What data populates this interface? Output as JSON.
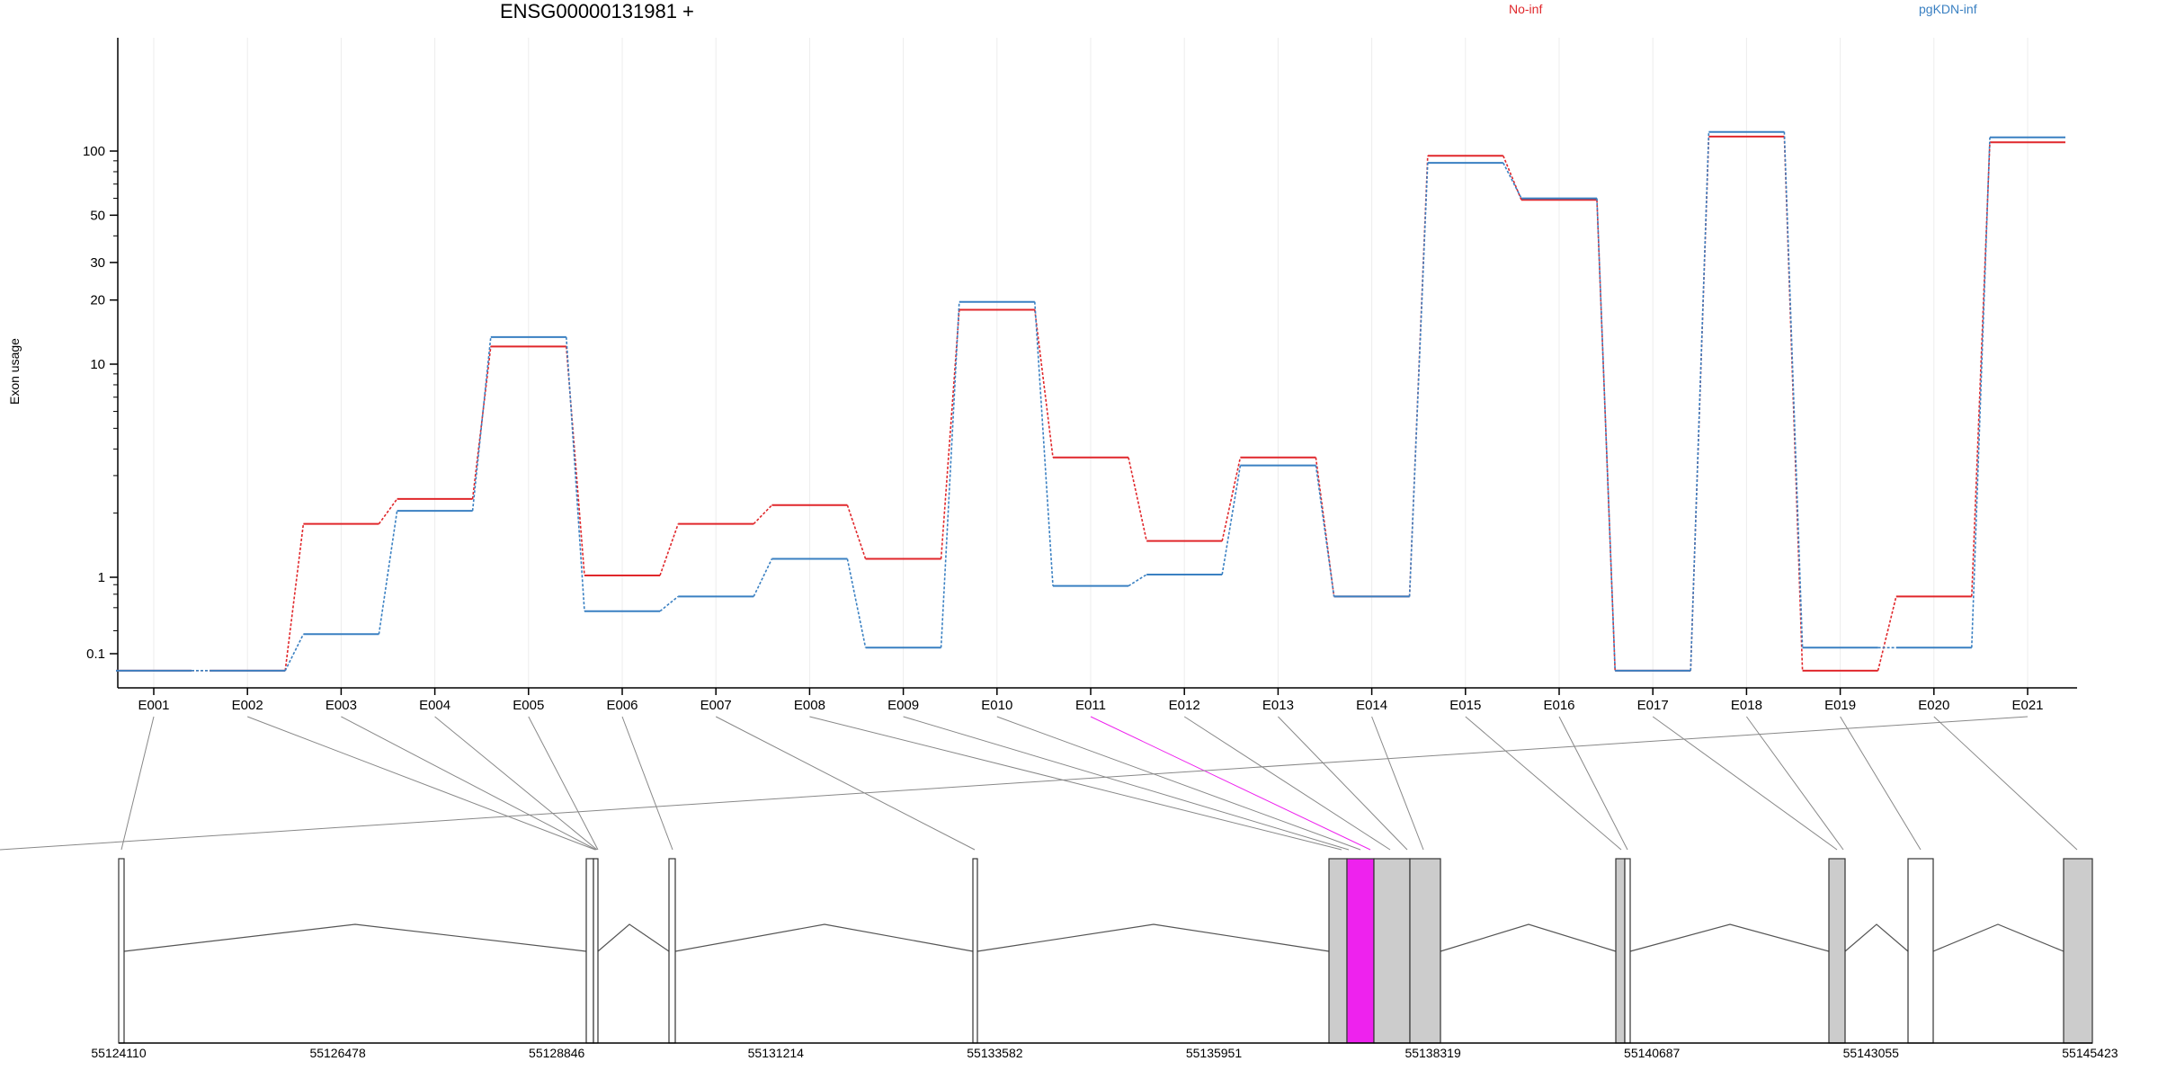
{
  "chart_data": {
    "type": "line",
    "title": "ENSG00000131981 +",
    "ylabel": "Exon usage",
    "yscale": "log",
    "y_ticks": [
      0.1,
      1,
      10,
      20,
      30,
      50,
      100
    ],
    "y_tick_labels": [
      "0.1",
      "1",
      "10",
      "20",
      "30",
      "50",
      "100"
    ],
    "categories": [
      "E001",
      "E002",
      "E003",
      "E004",
      "E005",
      "E006",
      "E007",
      "E008",
      "E009",
      "E010",
      "E011",
      "E012",
      "E013",
      "E014",
      "E015",
      "E016",
      "E017",
      "E018",
      "E019",
      "E020",
      "E021"
    ],
    "series": [
      {
        "name": "No-inf",
        "color": "#e0272b",
        "values": [
          0.06,
          0.06,
          1.78,
          2.33,
          12.1,
          1.02,
          1.78,
          2.18,
          1.22,
          18.0,
          3.65,
          1.48,
          3.65,
          0.56,
          95.0,
          59.0,
          0.06,
          117.0,
          0.06,
          0.56,
          110.0
        ]
      },
      {
        "name": "pgKDN-inf",
        "color": "#3a80c2",
        "values": [
          0.06,
          0.06,
          0.18,
          2.05,
          13.4,
          0.36,
          0.56,
          1.22,
          0.12,
          19.6,
          0.77,
          1.03,
          3.35,
          0.56,
          88.0,
          60.0,
          0.06,
          123.0,
          0.12,
          0.12,
          116.0
        ]
      }
    ],
    "legend_position": "top",
    "grid": "vertical-light",
    "gene_model": {
      "coord_ticks": [
        "55124110",
        "55126478",
        "55128846",
        "55131214",
        "55133582",
        "55135951",
        "55138319",
        "55140687",
        "55143055",
        "55145423"
      ],
      "highlight_exon": "E011",
      "highlight_color": "#ee22ee"
    }
  }
}
